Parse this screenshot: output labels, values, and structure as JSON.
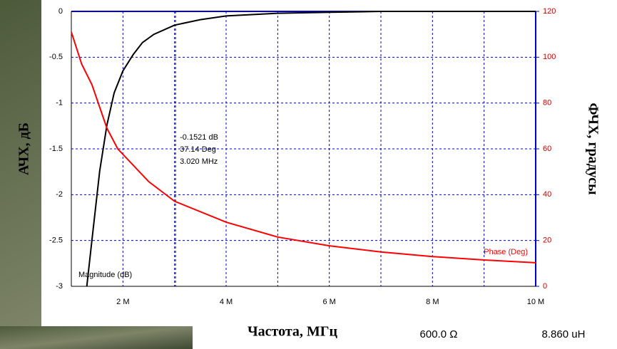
{
  "chart_data": {
    "type": "line",
    "y_title": "АЧХ, дБ",
    "y2_title": "ФЧХ, градусы",
    "x_title": "Частота, МГц",
    "xlim": [
      1,
      10
    ],
    "xticks": [
      {
        "value": 2,
        "label": "2 M"
      },
      {
        "value": 4,
        "label": "4 M"
      },
      {
        "value": 6,
        "label": "6 M"
      },
      {
        "value": 8,
        "label": "8 M"
      },
      {
        "value": 10,
        "label": "10 M"
      }
    ],
    "x_minor_ticks": [
      3,
      5,
      7,
      9
    ],
    "ylim": [
      -3,
      0
    ],
    "yticks": [
      0,
      -0.5,
      -1,
      -1.5,
      -2,
      -2.5,
      -3
    ],
    "y2lim": [
      0,
      120
    ],
    "y2ticks": [
      0,
      20,
      40,
      60,
      80,
      100,
      120
    ],
    "grid": true,
    "series": [
      {
        "name": "Magnitude (dB)",
        "color": "#000000",
        "x": [
          1.3,
          1.41,
          1.55,
          1.69,
          1.83,
          2.0,
          2.2,
          2.38,
          2.6,
          3.0,
          3.5,
          4.0,
          5.0,
          6.0,
          7,
          8,
          9,
          10
        ],
        "values": [
          -3,
          -2.44,
          -1.74,
          -1.24,
          -0.89,
          -0.65,
          -0.47,
          -0.34,
          -0.25,
          -0.15,
          -0.09,
          -0.05,
          -0.02,
          -0.01,
          0,
          0,
          0,
          0
        ]
      },
      {
        "name": "Phase (Deg)",
        "color": "#ff0000",
        "axis": "y2",
        "x": [
          1,
          1.2,
          1.4,
          1.69,
          1.9,
          2.5,
          3,
          4,
          5,
          6,
          7,
          8,
          9,
          10
        ],
        "values": [
          111,
          97,
          88,
          69,
          60,
          45.7,
          37.14,
          28,
          21.5,
          17.7,
          15,
          13,
          11.5,
          10.3
        ]
      }
    ],
    "cursor": {
      "x": 3.02,
      "labels": [
        "-0.1521 dB",
        "37.14 Deg",
        "3.020 MHz"
      ]
    },
    "footer_texts": [
      "600.0 Ω",
      "8.860 uH"
    ]
  }
}
